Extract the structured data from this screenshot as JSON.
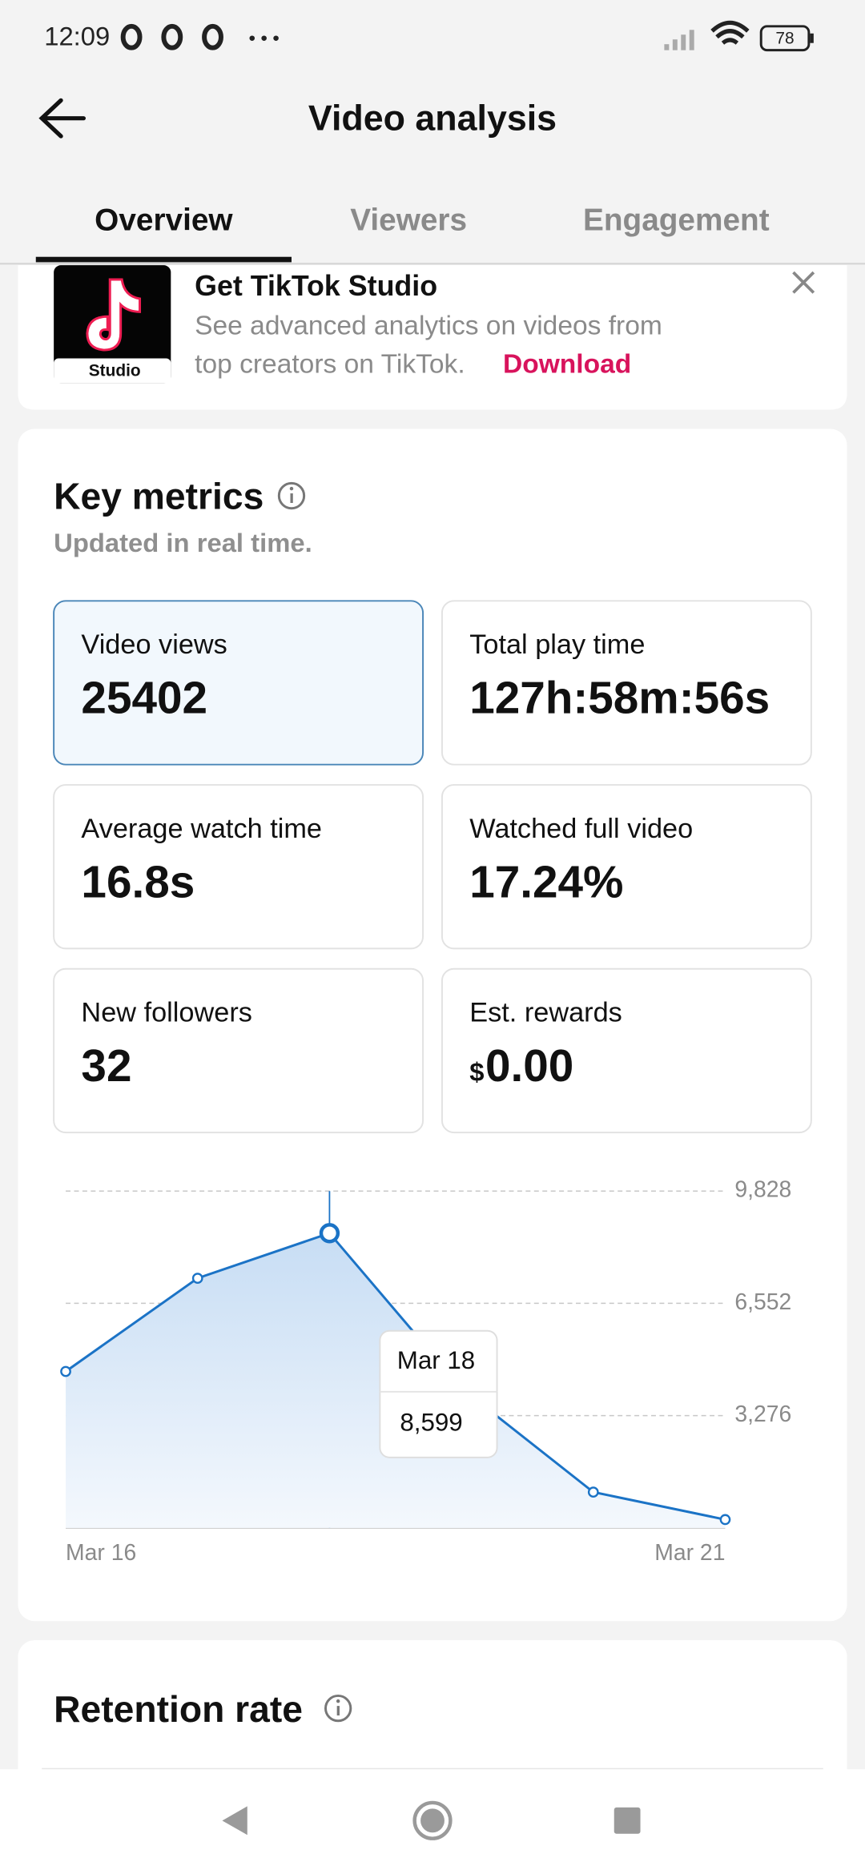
{
  "status_bar": {
    "time": "12:09",
    "battery": "78"
  },
  "header": {
    "title": "Video analysis"
  },
  "tabs": [
    "Overview",
    "Viewers",
    "Engagement"
  ],
  "banner": {
    "logo_label": "Studio",
    "title": "Get TikTok Studio",
    "text_line1": "See advanced analytics on videos from",
    "text_line2": "top creators on TikTok.",
    "link": "Download"
  },
  "key_metrics": {
    "title": "Key metrics",
    "subtitle": "Updated in real time.",
    "cards": [
      {
        "label": "Video views",
        "value": "25402"
      },
      {
        "label": "Total play time",
        "value": "127h:58m:56s"
      },
      {
        "label": "Average watch time",
        "value": "16.8s"
      },
      {
        "label": "Watched full video",
        "value": "17.24%"
      },
      {
        "label": "New followers",
        "value": "32"
      },
      {
        "label": "Est. rewards",
        "currency": "$",
        "value": "0.00"
      }
    ]
  },
  "chart_data": {
    "type": "area",
    "color": "#1b73c6",
    "categories": [
      "Mar 16",
      null,
      null,
      null,
      null,
      "Mar 21"
    ],
    "values": [
      4565,
      7284,
      8599,
      4078,
      1045,
      244
    ],
    "value_labels": [
      null,
      null,
      "8,599",
      null,
      null,
      null
    ],
    "tooltip_title": "Mar 18",
    "ylim": [
      0,
      9828
    ],
    "yticks": [
      {
        "value": 3276,
        "label": "3,276"
      },
      {
        "value": 6552,
        "label": "6,552"
      },
      {
        "value": 9828,
        "label": "9,828"
      }
    ],
    "grid": true
  },
  "retention": {
    "title": "Retention rate"
  }
}
